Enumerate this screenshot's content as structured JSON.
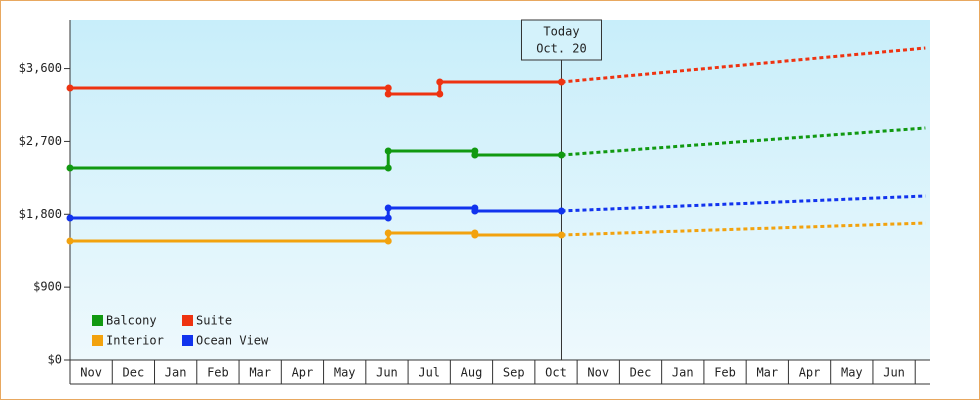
{
  "chart_data": {
    "type": "step-line",
    "ylim": [
      0,
      4200
    ],
    "yticks": [
      {
        "value": 0,
        "label": "$0"
      },
      {
        "value": 900,
        "label": "$900"
      },
      {
        "value": 1800,
        "label": "$1,800"
      },
      {
        "value": 2700,
        "label": "$2,700"
      },
      {
        "value": 3600,
        "label": "$3,600"
      }
    ],
    "xlim": [
      0,
      20.35
    ],
    "xticks": [
      0,
      1,
      2,
      3,
      4,
      5,
      6,
      7,
      8,
      9,
      10,
      11,
      12,
      13,
      14,
      15,
      16,
      17,
      18,
      19,
      20
    ],
    "categories": [
      "Nov",
      "Dec",
      "Jan",
      "Feb",
      "Mar",
      "Apr",
      "May",
      "Jun",
      "Jul",
      "Aug",
      "Sep",
      "Oct",
      "Nov",
      "Dec",
      "Jan",
      "Feb",
      "Mar",
      "Apr",
      "May",
      "Jun"
    ],
    "annotation": {
      "x": 11.63,
      "lines": [
        "Today",
        "Oct. 20"
      ]
    },
    "series": [
      {
        "name": "Balcony",
        "color": "#119911",
        "x": [
          0,
          7.53,
          7.53,
          9.58,
          9.58,
          11.63
        ],
        "values": [
          2372,
          2372,
          2582,
          2582,
          2532,
          2532
        ],
        "forecast": {
          "x": [
            11.63,
            20.24
          ],
          "values": [
            2532,
            2866
          ]
        }
      },
      {
        "name": "Suite",
        "color": "#ee3311",
        "x": [
          0,
          7.53,
          7.53,
          8.75,
          8.75,
          11.63
        ],
        "values": [
          3360,
          3360,
          3286,
          3286,
          3434,
          3434
        ],
        "forecast": {
          "x": [
            11.63,
            20.24
          ],
          "values": [
            3434,
            3854
          ]
        }
      },
      {
        "name": "Interior",
        "color": "#f2a20e",
        "x": [
          0,
          7.53,
          7.53,
          9.58,
          9.58,
          11.63
        ],
        "values": [
          1470,
          1470,
          1569,
          1569,
          1544,
          1544
        ],
        "forecast": {
          "x": [
            11.63,
            20.24
          ],
          "values": [
            1544,
            1692
          ]
        }
      },
      {
        "name": "Ocean View",
        "color": "#1133ee",
        "x": [
          0,
          7.53,
          7.53,
          9.58,
          9.58,
          11.63
        ],
        "values": [
          1754,
          1754,
          1878,
          1878,
          1841,
          1841
        ],
        "forecast": {
          "x": [
            11.63,
            20.24
          ],
          "values": [
            1841,
            2026
          ]
        }
      }
    ]
  }
}
